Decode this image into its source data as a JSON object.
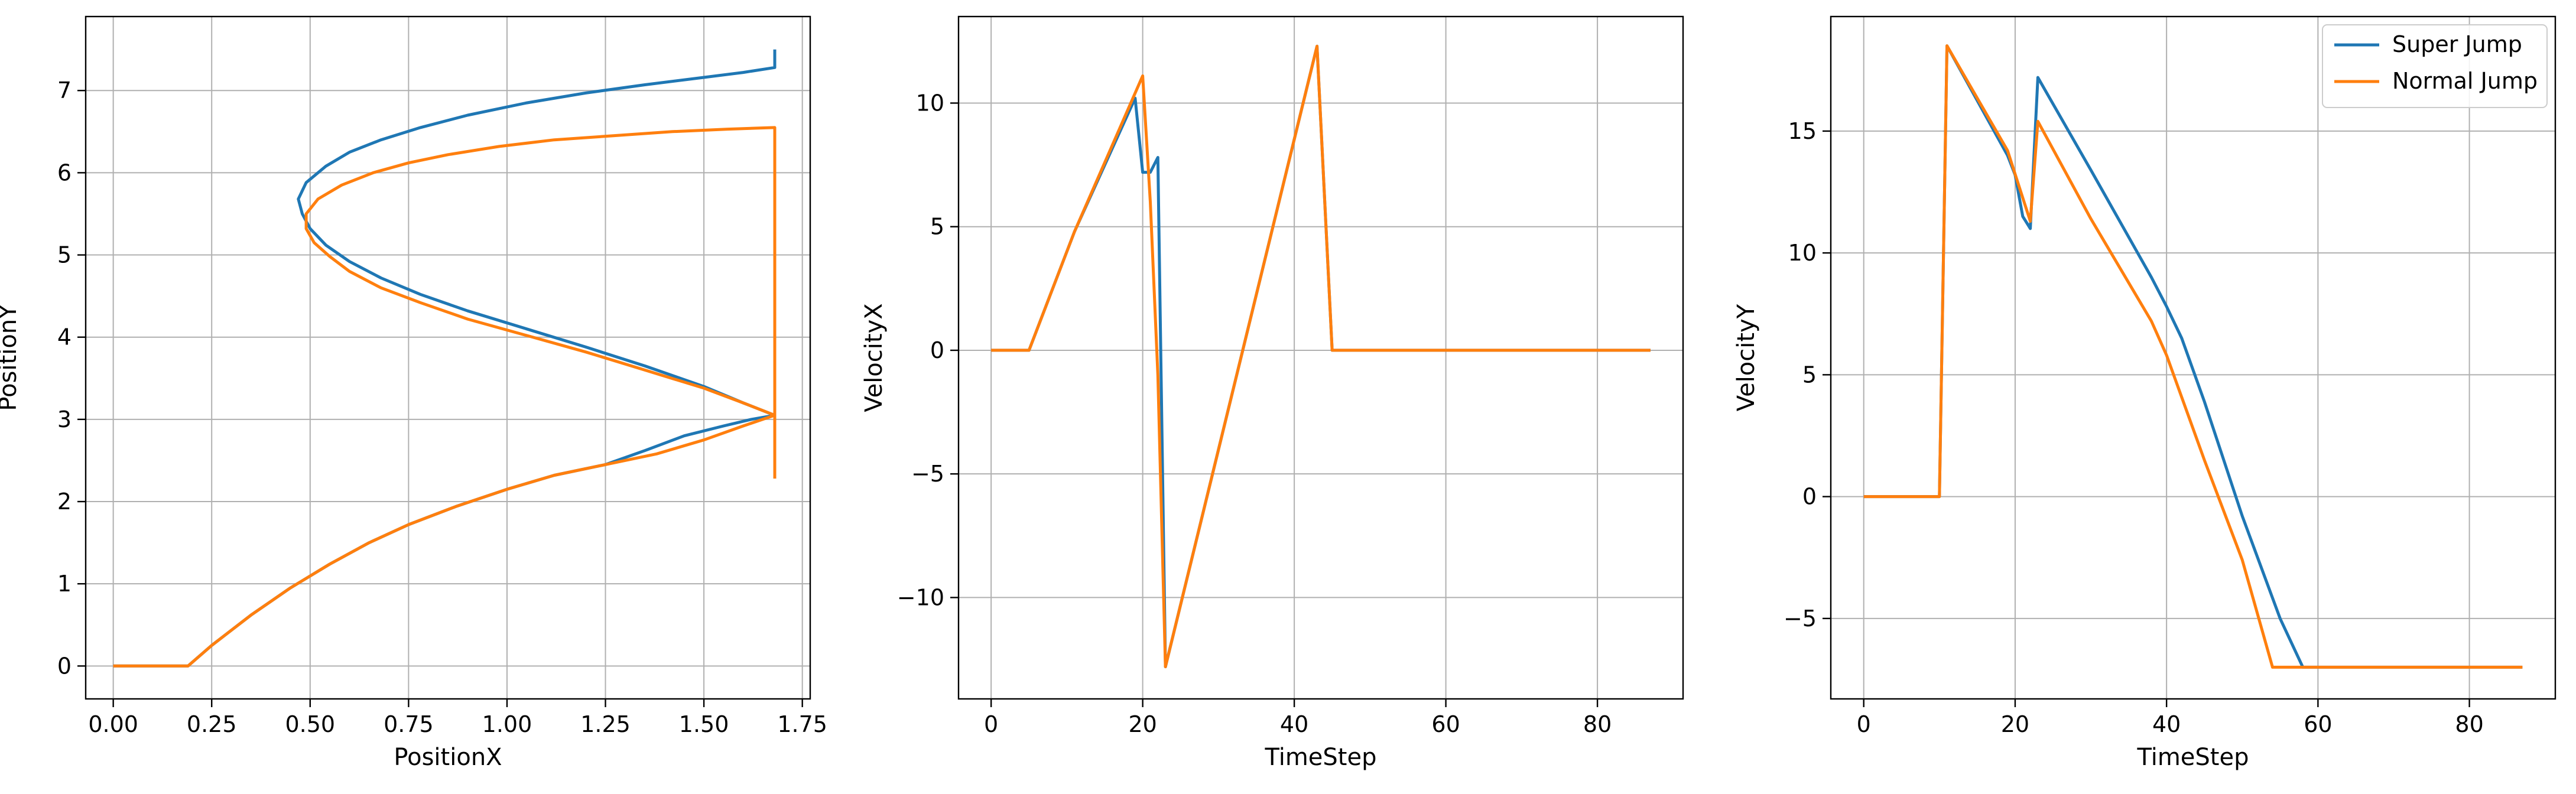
{
  "chart_data": [
    {
      "type": "line",
      "xlabel": "PositionX",
      "ylabel": "PositionY",
      "xlim": [
        -0.07,
        1.77
      ],
      "ylim": [
        -0.4,
        7.9
      ],
      "xticks": [
        0.0,
        0.25,
        0.5,
        0.75,
        1.0,
        1.25,
        1.5,
        1.75
      ],
      "xtick_labels": [
        "0.00",
        "0.25",
        "0.50",
        "0.75",
        "1.00",
        "1.25",
        "1.50",
        "1.75"
      ],
      "yticks": [
        0,
        1,
        2,
        3,
        4,
        5,
        6,
        7
      ],
      "ytick_labels": [
        "0",
        "1",
        "2",
        "3",
        "4",
        "5",
        "6",
        "7"
      ],
      "grid": true,
      "legend": null,
      "series": [
        {
          "color": "#1f77b4",
          "x": [
            0.0,
            0.19,
            0.25,
            0.35,
            0.45,
            0.55,
            0.65,
            0.75,
            0.87,
            1.0,
            1.12,
            1.25,
            1.35,
            1.45,
            1.55,
            1.62,
            1.68,
            1.68,
            1.6,
            1.5,
            1.35,
            1.2,
            1.05,
            0.9,
            0.78,
            0.68,
            0.6,
            0.54,
            0.5,
            0.48,
            0.47,
            0.49,
            0.54,
            0.6,
            0.68,
            0.78,
            0.9,
            1.05,
            1.2,
            1.35,
            1.5,
            1.6,
            1.68,
            1.68
          ],
          "y": [
            0.0,
            0.0,
            0.25,
            0.62,
            0.95,
            1.24,
            1.5,
            1.72,
            1.94,
            2.15,
            2.32,
            2.45,
            2.62,
            2.8,
            2.92,
            3.0,
            3.05,
            3.05,
            3.2,
            3.4,
            3.65,
            3.88,
            4.1,
            4.32,
            4.52,
            4.72,
            4.92,
            5.12,
            5.32,
            5.5,
            5.68,
            5.88,
            6.08,
            6.25,
            6.4,
            6.55,
            6.7,
            6.85,
            6.97,
            7.07,
            7.16,
            7.22,
            7.28,
            7.5
          ]
        },
        {
          "color": "#ff7f0e",
          "x": [
            0.0,
            0.19,
            0.25,
            0.35,
            0.45,
            0.55,
            0.65,
            0.75,
            0.87,
            1.0,
            1.12,
            1.25,
            1.38,
            1.5,
            1.6,
            1.68,
            1.68,
            1.6,
            1.5,
            1.35,
            1.2,
            1.05,
            0.9,
            0.78,
            0.68,
            0.6,
            0.55,
            0.51,
            0.49,
            0.49,
            0.52,
            0.58,
            0.66,
            0.75,
            0.85,
            0.98,
            1.12,
            1.27,
            1.42,
            1.56,
            1.68,
            1.68,
            1.68
          ],
          "y": [
            0.0,
            0.0,
            0.25,
            0.62,
            0.95,
            1.24,
            1.5,
            1.72,
            1.94,
            2.15,
            2.32,
            2.45,
            2.58,
            2.75,
            2.92,
            3.05,
            3.05,
            3.2,
            3.38,
            3.6,
            3.82,
            4.02,
            4.22,
            4.42,
            4.6,
            4.8,
            4.98,
            5.15,
            5.32,
            5.5,
            5.68,
            5.85,
            6.0,
            6.12,
            6.22,
            6.32,
            6.4,
            6.45,
            6.5,
            6.53,
            6.55,
            3.05,
            2.28
          ]
        }
      ]
    },
    {
      "type": "line",
      "xlabel": "TimeStep",
      "ylabel": "VelocityX",
      "xlim": [
        -4.3,
        91.3
      ],
      "ylim": [
        -14.1,
        13.5
      ],
      "xticks": [
        0,
        20,
        40,
        60,
        80
      ],
      "xtick_labels": [
        "0",
        "20",
        "40",
        "60",
        "80"
      ],
      "yticks": [
        -10,
        -5,
        0,
        5,
        10
      ],
      "ytick_labels": [
        "−10",
        "−5",
        "0",
        "5",
        "10"
      ],
      "grid": true,
      "legend": null,
      "series": [
        {
          "color": "#1f77b4",
          "x": [
            0,
            5,
            11,
            19,
            20,
            21,
            22,
            23,
            43,
            45,
            87
          ],
          "y": [
            0,
            0,
            4.8,
            10.2,
            7.2,
            7.2,
            7.8,
            -12.8,
            12.3,
            0,
            0
          ]
        },
        {
          "color": "#ff7f0e",
          "x": [
            0,
            5,
            11,
            20,
            21,
            22,
            23,
            43,
            45,
            87
          ],
          "y": [
            0,
            0,
            4.8,
            11.1,
            6.0,
            -1.0,
            -12.8,
            12.3,
            0,
            0
          ]
        }
      ]
    },
    {
      "type": "line",
      "xlabel": "TimeStep",
      "ylabel": "VelocityY",
      "xlim": [
        -4.35,
        91.35
      ],
      "ylim": [
        -8.3,
        19.7
      ],
      "xticks": [
        0,
        20,
        40,
        60,
        80
      ],
      "xtick_labels": [
        "0",
        "20",
        "40",
        "60",
        "80"
      ],
      "yticks": [
        -5,
        0,
        5,
        10,
        15
      ],
      "ytick_labels": [
        "−5",
        "0",
        "5",
        "10",
        "15"
      ],
      "grid": true,
      "legend": "top-right",
      "series": [
        {
          "name": "Super Jump",
          "color": "#1f77b4",
          "x": [
            0,
            10,
            11,
            19,
            20,
            21,
            22,
            23,
            30,
            38,
            40,
            42,
            45,
            50,
            55,
            58,
            87
          ],
          "y": [
            0,
            0,
            18.5,
            14.0,
            13.2,
            11.5,
            11.0,
            17.2,
            13.4,
            9.0,
            7.8,
            6.5,
            3.9,
            -0.8,
            -5.0,
            -7.0,
            -7.0
          ]
        },
        {
          "name": "Normal Jump",
          "color": "#ff7f0e",
          "x": [
            0,
            10,
            11,
            19,
            22,
            23,
            30,
            38,
            40,
            45,
            50,
            54,
            87
          ],
          "y": [
            0,
            0,
            18.5,
            14.2,
            11.3,
            15.4,
            11.4,
            7.2,
            5.8,
            1.5,
            -2.6,
            -7.0,
            -7.0
          ]
        }
      ]
    }
  ]
}
